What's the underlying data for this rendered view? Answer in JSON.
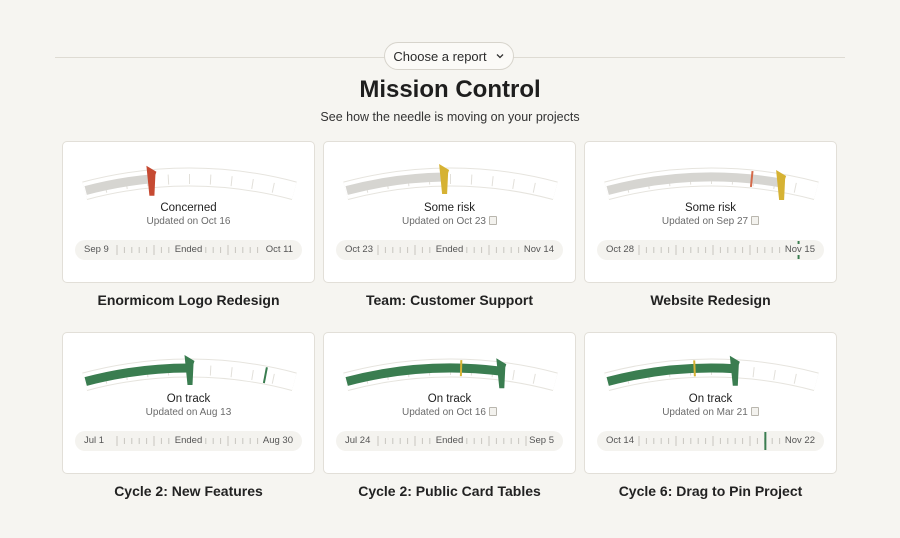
{
  "header": {
    "chooser_label": "Choose a report",
    "title": "Mission Control",
    "subtitle": "See how the needle is moving on your projects"
  },
  "cards": [
    {
      "status": "Concerned",
      "updated": "Updated on Oct 16",
      "doc": false,
      "start": "Sep 9",
      "end": "Oct 11",
      "mid": "Ended",
      "name": "Enormicom Logo Redesign",
      "needle": 0.32,
      "progress": 0.32,
      "marker": null,
      "color": "#c64a32",
      "fill": "#d6d5d1",
      "today": null
    },
    {
      "status": "Some risk",
      "updated": "Updated on Oct 23",
      "doc": true,
      "start": "Oct 23",
      "end": "Nov 14",
      "mid": "Ended",
      "name": "Team: Customer Support",
      "needle": 0.47,
      "progress": 0.47,
      "marker": null,
      "color": "#d6b233",
      "fill": "#d6d5d1",
      "today": null
    },
    {
      "status": "Some risk",
      "updated": "Updated on Sep 27",
      "doc": true,
      "start": "Oct 28",
      "end": "Nov 15",
      "mid": "",
      "name": "Website Redesign",
      "needle": 0.83,
      "progress": 0.83,
      "marker": 0.69,
      "markerColor": "#d46a4a",
      "color": "#d6b233",
      "fill": "#d6d5d1",
      "today": 0.985
    },
    {
      "status": "On track",
      "updated": "Updated on Aug 13",
      "doc": false,
      "start": "Jul 1",
      "end": "Aug 30",
      "mid": "Ended",
      "name": "Cycle 2: New Features",
      "needle": 0.5,
      "progress": 0.5,
      "marker": 0.86,
      "markerColor": "#3a7d50",
      "color": "#3a7d50",
      "fill": "#3a7d50",
      "today": null
    },
    {
      "status": "On track",
      "updated": "Updated on Oct 16",
      "doc": true,
      "start": "Jul 24",
      "end": "Sep 5",
      "mid": "Ended",
      "name": "Cycle 2: Public Card Tables",
      "needle": 0.74,
      "progress": 0.74,
      "marker": 0.55,
      "markerColor": "#d6b233",
      "color": "#3a7d50",
      "fill": "#3a7d50",
      "today": null
    },
    {
      "status": "On track",
      "updated": "Updated on Mar 21",
      "doc": true,
      "start": "Oct 14",
      "end": "Nov 22",
      "mid": "",
      "name": "Cycle 6: Drag to Pin Project",
      "needle": 0.61,
      "progress": 0.61,
      "marker": 0.42,
      "markerColor": "#d6b233",
      "color": "#3a7d50",
      "fill": "#3a7d50",
      "today": 0.78
    }
  ]
}
